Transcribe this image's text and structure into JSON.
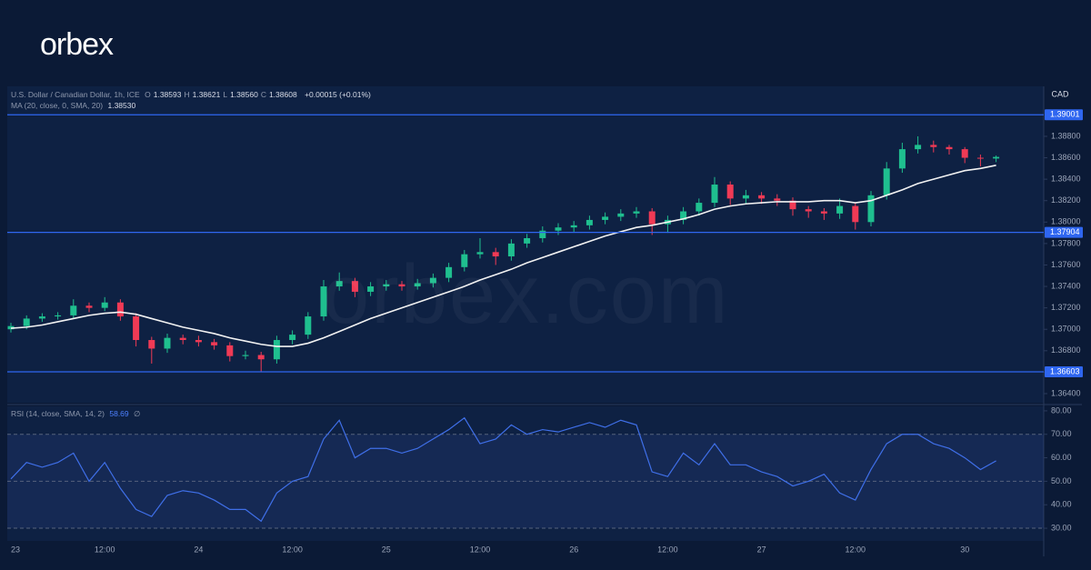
{
  "header": {
    "logo": "orbex",
    "watermark": "orbex.com"
  },
  "chart_data": [
    {
      "type": "candlestick",
      "title": "U.S. Dollar / Canadian Dollar, 1h, ICE",
      "ohlc": [
        {
          "name": "O",
          "value": "1.38593"
        },
        {
          "name": "H",
          "value": "1.38621"
        },
        {
          "name": "L",
          "value": "1.38560"
        },
        {
          "name": "C",
          "value": "1.38608"
        }
      ],
      "change": "+0.00015 (+0.01%)",
      "ma_label": "MA (20, close, 0, SMA, 20)",
      "ma_value": "1.38530",
      "currency": "CAD",
      "up_color": "#1fbf8f",
      "down_color": "#f03a55",
      "ma_color": "#f2f2f2",
      "level_color": "#2f66f0",
      "categories": [
        "23",
        null,
        null,
        null,
        null,
        null,
        "12:00",
        null,
        null,
        null,
        null,
        null,
        "24",
        null,
        null,
        null,
        null,
        null,
        "12:00",
        null,
        null,
        null,
        null,
        null,
        "25",
        null,
        null,
        null,
        null,
        null,
        "12:00",
        null,
        null,
        null,
        null,
        null,
        "26",
        null,
        null,
        null,
        null,
        null,
        "12:00",
        null,
        null,
        null,
        null,
        null,
        "27",
        null,
        null,
        null,
        null,
        null,
        "12:00",
        null,
        null,
        null,
        null,
        null,
        null,
        "30",
        null,
        null
      ],
      "open": [
        1.37,
        1.3703,
        1.371,
        1.3712,
        1.3713,
        1.3722,
        1.372,
        1.3725,
        1.3712,
        1.369,
        1.3682,
        1.3692,
        1.369,
        1.3688,
        1.3685,
        1.3675,
        1.3676,
        1.3672,
        1.369,
        1.3695,
        1.3712,
        1.374,
        1.3745,
        1.3735,
        1.374,
        1.3742,
        1.374,
        1.3743,
        1.3748,
        1.3758,
        1.377,
        1.3772,
        1.3768,
        1.378,
        1.3785,
        1.3792,
        1.3795,
        1.3797,
        1.3802,
        1.3805,
        1.3808,
        1.381,
        1.3798,
        1.3802,
        1.381,
        1.3818,
        1.3835,
        1.3822,
        1.3825,
        1.3822,
        1.382,
        1.3812,
        1.381,
        1.3808,
        1.3815,
        1.38,
        1.3825,
        1.385,
        1.3868,
        1.3872,
        1.387,
        1.3868,
        1.386,
        1.38593
      ],
      "high": [
        1.3706,
        1.3713,
        1.3715,
        1.3716,
        1.3728,
        1.3725,
        1.373,
        1.3728,
        1.3715,
        1.3693,
        1.3696,
        1.3695,
        1.3694,
        1.3691,
        1.3688,
        1.368,
        1.3679,
        1.3694,
        1.3699,
        1.3716,
        1.3746,
        1.3753,
        1.3748,
        1.3744,
        1.3746,
        1.3745,
        1.3747,
        1.3752,
        1.3762,
        1.3774,
        1.3785,
        1.3776,
        1.3784,
        1.3789,
        1.3796,
        1.3799,
        1.3801,
        1.3806,
        1.3809,
        1.3812,
        1.3814,
        1.3813,
        1.3806,
        1.3814,
        1.3822,
        1.3842,
        1.3838,
        1.383,
        1.3828,
        1.3826,
        1.3823,
        1.3815,
        1.3813,
        1.3822,
        1.3818,
        1.3829,
        1.3856,
        1.3874,
        1.388,
        1.3876,
        1.3872,
        1.387,
        1.3863,
        1.38621
      ],
      "low": [
        1.3697,
        1.37,
        1.3707,
        1.3709,
        1.371,
        1.3716,
        1.3717,
        1.3708,
        1.3684,
        1.3668,
        1.3678,
        1.3686,
        1.3684,
        1.3681,
        1.367,
        1.3672,
        1.366,
        1.3668,
        1.3686,
        1.3691,
        1.3708,
        1.3736,
        1.373,
        1.3731,
        1.3736,
        1.3736,
        1.3737,
        1.3739,
        1.3744,
        1.3754,
        1.3766,
        1.376,
        1.3764,
        1.3776,
        1.3781,
        1.3788,
        1.3791,
        1.3793,
        1.3798,
        1.3801,
        1.3804,
        1.3788,
        1.379,
        1.3798,
        1.3806,
        1.3814,
        1.3816,
        1.3817,
        1.3817,
        1.3815,
        1.3806,
        1.3804,
        1.3802,
        1.3803,
        1.3793,
        1.3796,
        1.3821,
        1.3846,
        1.3864,
        1.3865,
        1.3863,
        1.3855,
        1.3852,
        1.3856
      ],
      "close": [
        1.3703,
        1.371,
        1.3712,
        1.3713,
        1.3722,
        1.372,
        1.3725,
        1.3712,
        1.369,
        1.3682,
        1.3692,
        1.369,
        1.3688,
        1.3685,
        1.3675,
        1.3676,
        1.3672,
        1.369,
        1.3695,
        1.3712,
        1.374,
        1.3745,
        1.3735,
        1.374,
        1.3742,
        1.374,
        1.3743,
        1.3748,
        1.3758,
        1.377,
        1.3772,
        1.3768,
        1.378,
        1.3785,
        1.3792,
        1.3795,
        1.3797,
        1.3802,
        1.3805,
        1.3808,
        1.381,
        1.3798,
        1.3802,
        1.381,
        1.3818,
        1.3835,
        1.3822,
        1.3825,
        1.3822,
        1.382,
        1.3812,
        1.381,
        1.3808,
        1.3815,
        1.38,
        1.3825,
        1.385,
        1.3868,
        1.3872,
        1.387,
        1.3868,
        1.386,
        1.38593,
        1.38608
      ],
      "ma": [
        1.3701,
        1.3702,
        1.3704,
        1.3707,
        1.371,
        1.3713,
        1.3715,
        1.3716,
        1.3714,
        1.371,
        1.3706,
        1.3702,
        1.3699,
        1.3696,
        1.3692,
        1.3689,
        1.3686,
        1.3684,
        1.3684,
        1.3687,
        1.3692,
        1.3698,
        1.3704,
        1.371,
        1.3715,
        1.372,
        1.3725,
        1.373,
        1.3735,
        1.374,
        1.3746,
        1.3751,
        1.3756,
        1.3762,
        1.3767,
        1.3772,
        1.3777,
        1.3782,
        1.3787,
        1.3791,
        1.3795,
        1.3797,
        1.38,
        1.3803,
        1.3807,
        1.3812,
        1.3815,
        1.3817,
        1.3818,
        1.3819,
        1.3819,
        1.3819,
        1.382,
        1.382,
        1.3818,
        1.382,
        1.3825,
        1.383,
        1.3836,
        1.384,
        1.3844,
        1.3848,
        1.385,
        1.3853
      ],
      "levels": [
        1.39001,
        1.37904,
        1.36603
      ],
      "ylim": [
        1.36315,
        1.39266
      ],
      "yticks": [
        {
          "value": 1.364,
          "label": "1.36400"
        },
        {
          "value": 1.366,
          "label": "1.36600"
        },
        {
          "value": 1.368,
          "label": "1.36800"
        },
        {
          "value": 1.37,
          "label": "1.37000"
        },
        {
          "value": 1.372,
          "label": "1.37200"
        },
        {
          "value": 1.374,
          "label": "1.37400"
        },
        {
          "value": 1.376,
          "label": "1.37600"
        },
        {
          "value": 1.378,
          "label": "1.37800"
        },
        {
          "value": 1.38,
          "label": "1.38000"
        },
        {
          "value": 1.382,
          "label": "1.38200"
        },
        {
          "value": 1.384,
          "label": "1.38400"
        },
        {
          "value": 1.386,
          "label": "1.38600"
        },
        {
          "value": 1.388,
          "label": "1.38800"
        }
      ],
      "grid": false
    },
    {
      "type": "line",
      "title": "RSI (14, close, SMA, 14, 2)",
      "value_label": "58.69",
      "extra": "∅",
      "color": "#3f6fe8",
      "values": [
        51,
        58,
        56,
        58,
        62,
        50,
        58,
        47,
        38,
        35,
        44,
        46,
        45,
        42,
        38,
        38,
        33,
        45,
        50,
        52,
        68,
        76,
        60,
        64,
        64,
        62,
        64,
        68,
        72,
        77,
        66,
        68,
        74,
        70,
        72,
        71,
        73,
        75,
        73,
        76,
        74,
        54,
        52,
        62,
        57,
        66,
        57,
        57,
        54,
        52,
        48,
        50,
        53,
        45,
        42,
        55,
        66,
        70,
        70,
        66,
        64,
        60,
        55,
        58.69
      ],
      "band": [
        30,
        70
      ],
      "levels": [
        70,
        50,
        30
      ],
      "ylim": [
        24.6,
        81.9
      ],
      "yticks": [
        {
          "value": 30,
          "label": "30.00"
        },
        {
          "value": 40,
          "label": "40.00"
        },
        {
          "value": 50,
          "label": "50.00"
        },
        {
          "value": 60,
          "label": "60.00"
        },
        {
          "value": 70,
          "label": "70.00"
        },
        {
          "value": 80,
          "label": "80.00"
        }
      ],
      "grid": false
    }
  ]
}
